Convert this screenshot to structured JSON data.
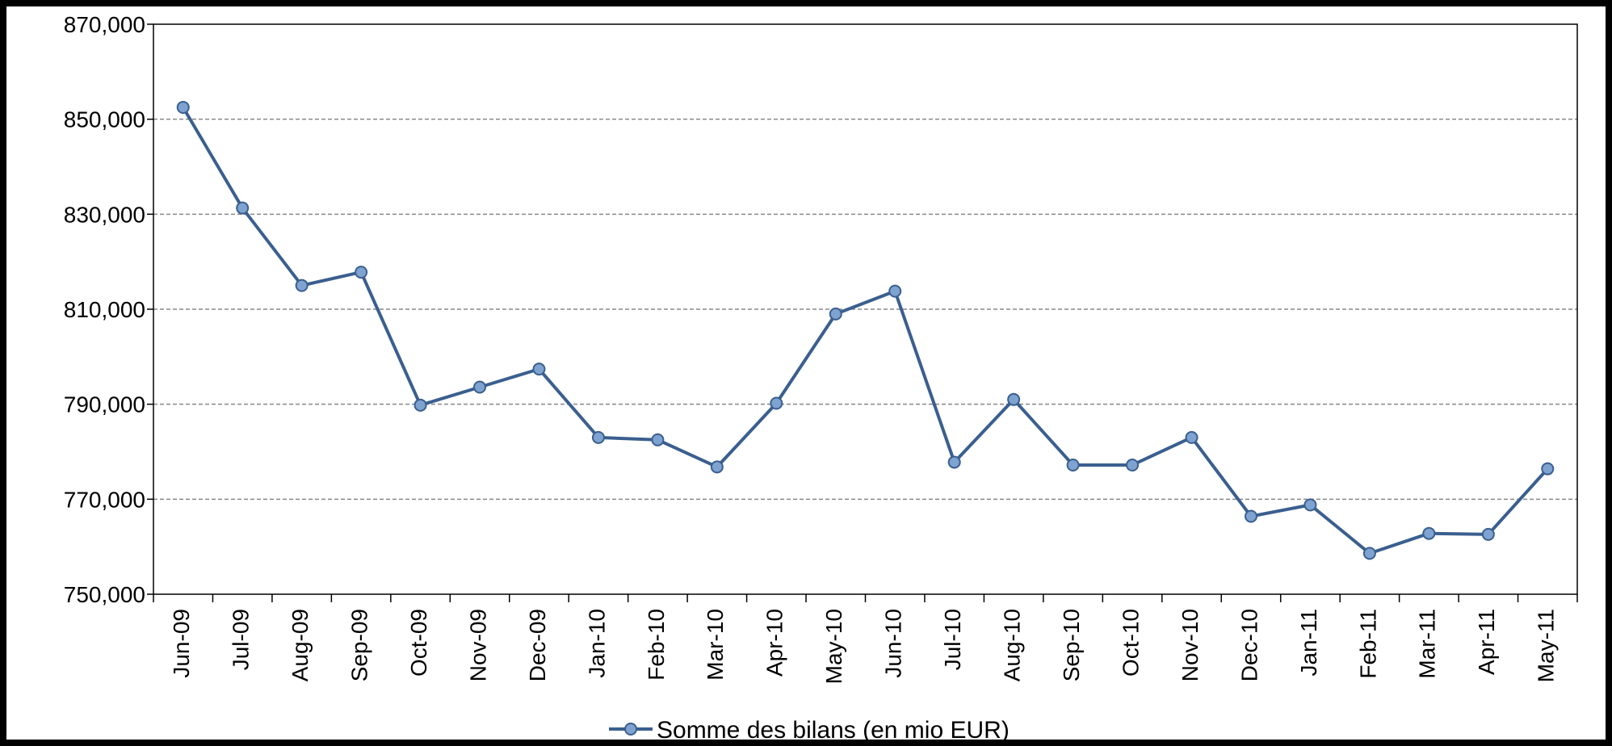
{
  "chart_data": {
    "type": "line",
    "title": "",
    "xlabel": "",
    "ylabel": "",
    "categories": [
      "Jun-09",
      "Jul-09",
      "Aug-09",
      "Sep-09",
      "Oct-09",
      "Nov-09",
      "Dec-09",
      "Jan-10",
      "Feb-10",
      "Mar-10",
      "Apr-10",
      "May-10",
      "Jun-10",
      "Jul-10",
      "Aug-10",
      "Sep-10",
      "Oct-10",
      "Nov-10",
      "Dec-10",
      "Jan-11",
      "Feb-11",
      "Mar-11",
      "Apr-11",
      "May-11"
    ],
    "series": [
      {
        "name": "Somme des bilans (en mio EUR)",
        "color": "#3a5f8f",
        "values": [
          852500,
          831300,
          815000,
          817800,
          789800,
          793600,
          797400,
          783000,
          782500,
          776800,
          790200,
          809000,
          813800,
          777800,
          791000,
          777200,
          777200,
          783000,
          766400,
          768800,
          758600,
          762800,
          762600,
          776400
        ]
      }
    ],
    "ylim": [
      750000,
      870000
    ],
    "yticks": [
      750000,
      770000,
      790000,
      810000,
      830000,
      850000,
      870000
    ],
    "ytick_labels": [
      "750,000",
      "770,000",
      "790,000",
      "810,000",
      "830,000",
      "850,000",
      "870,000"
    ],
    "grid": {
      "horizontal": true,
      "style": "dashed"
    },
    "legend": "bottom-center",
    "colors": {
      "line": "#3a5f8f",
      "marker": "#7fa3d1",
      "frame": "#000000",
      "grid": "#888888"
    }
  }
}
